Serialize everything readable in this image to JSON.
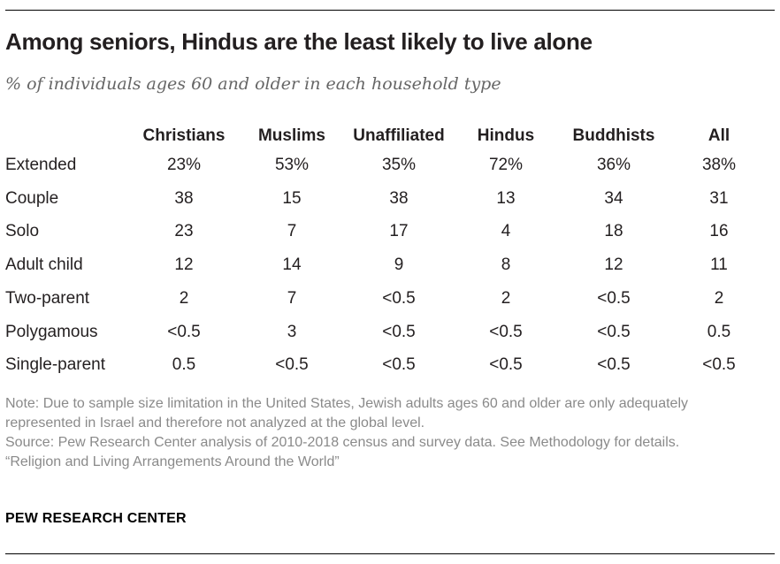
{
  "title": "Among seniors, Hindus are the least likely to live alone",
  "subtitle": "% of individuals ages 60 and older in each household type",
  "chart_data": {
    "type": "table",
    "title": "Among seniors, Hindus are the least likely to live alone",
    "subtitle": "% of individuals ages 60 and older in each household type",
    "columns": [
      "Christians",
      "Muslims",
      "Unaffiliated",
      "Hindus",
      "Buddhists",
      "All"
    ],
    "rows": [
      {
        "label": "Extended",
        "values": [
          "23%",
          "53%",
          "35%",
          "72%",
          "36%",
          "38%"
        ]
      },
      {
        "label": "Couple",
        "values": [
          "38",
          "15",
          "38",
          "13",
          "34",
          "31"
        ]
      },
      {
        "label": "Solo",
        "values": [
          "23",
          "7",
          "17",
          "4",
          "18",
          "16"
        ]
      },
      {
        "label": "Adult child",
        "values": [
          "12",
          "14",
          "9",
          "8",
          "12",
          "11"
        ]
      },
      {
        "label": "Two-parent",
        "values": [
          "2",
          "7",
          "<0.5",
          "2",
          "<0.5",
          "2"
        ]
      },
      {
        "label": "Polygamous",
        "values": [
          "<0.5",
          "3",
          "<0.5",
          "<0.5",
          "<0.5",
          "0.5"
        ]
      },
      {
        "label": "Single-parent",
        "values": [
          "0.5",
          "<0.5",
          "<0.5",
          "<0.5",
          "<0.5",
          "<0.5"
        ]
      }
    ]
  },
  "notes": {
    "note": "Note: Due to sample size limitation in the United States, Jewish adults ages 60 and older are only adequately represented in Israel and therefore not analyzed at the global level.",
    "source": "Source: Pew Research Center analysis of 2010-2018 census and survey data. See Methodology for details.",
    "report": "“Religion and Living Arrangements Around the World”"
  },
  "brand": "PEW RESEARCH CENTER"
}
